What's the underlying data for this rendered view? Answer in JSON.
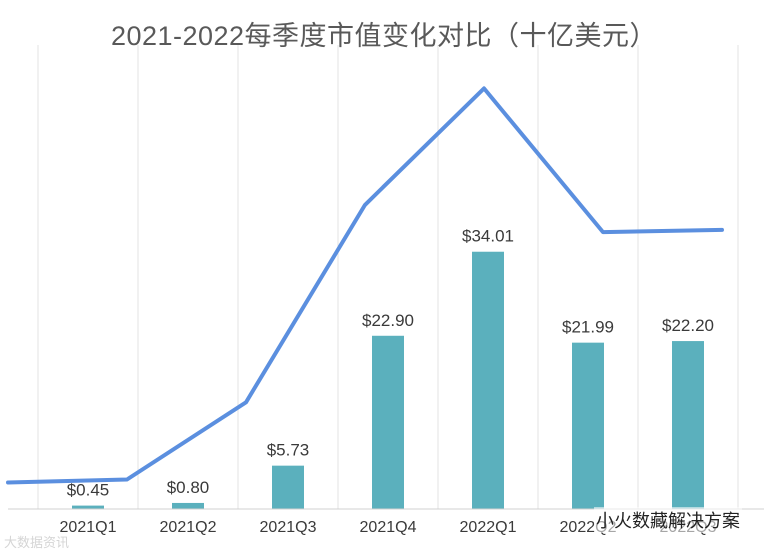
{
  "chart_data": {
    "type": "bar",
    "title": "2021-2022每季度市值变化对比（十亿美元）",
    "categories": [
      "2021Q1",
      "2021Q2",
      "2021Q3",
      "2021Q4",
      "2022Q1",
      "2022Q2",
      "2022Q3"
    ],
    "values": [
      0.45,
      0.8,
      5.73,
      22.9,
      34.01,
      21.99,
      22.2
    ],
    "value_labels": [
      "$0.45",
      "$0.80",
      "$5.73",
      "$22.90",
      "$34.01",
      "$21.99",
      "$22.20"
    ],
    "trend_line": {
      "type": "line",
      "values": [
        3.5,
        3.9,
        14.1,
        40.2,
        55.6,
        36.6,
        36.9
      ],
      "color": "#5b8fdf"
    },
    "bar_color": "#5bb0bd",
    "ylim": [
      0,
      62
    ],
    "grid": "vertical",
    "xlabel": "",
    "ylabel": ""
  },
  "watermarks": {
    "left": "大数据资讯",
    "right": "小火数藏解决方案"
  }
}
